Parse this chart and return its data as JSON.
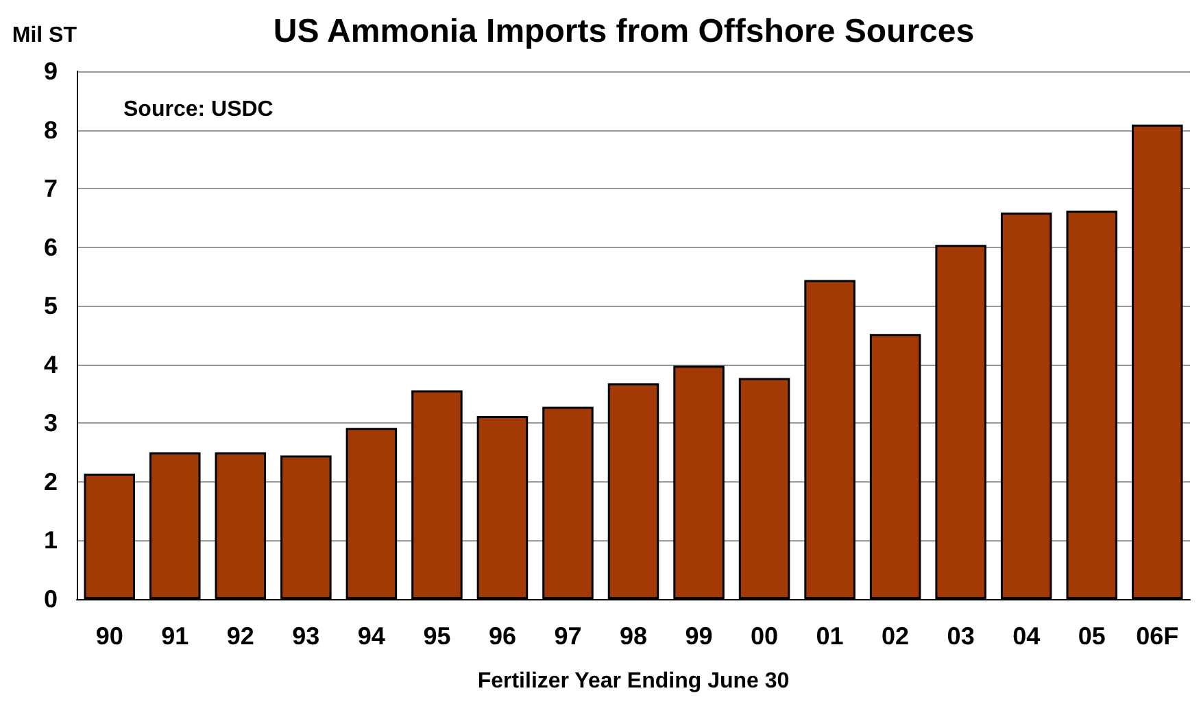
{
  "chart_data": {
    "type": "bar",
    "title": "US Ammonia Imports from Offshore Sources",
    "ylabel": "Mil ST",
    "xlabel": "Fertilizer Year Ending June 30",
    "annotations": [
      "Source: USDC"
    ],
    "categories": [
      "90",
      "91",
      "92",
      "93",
      "94",
      "95",
      "96",
      "97",
      "98",
      "99",
      "00",
      "01",
      "02",
      "03",
      "04",
      "05",
      "06F"
    ],
    "values": [
      2.14,
      2.5,
      2.5,
      2.45,
      2.92,
      3.56,
      3.12,
      3.28,
      3.68,
      3.98,
      3.77,
      5.44,
      4.52,
      6.04,
      6.59,
      6.62,
      8.09
    ],
    "color": "#a33a06",
    "ylim": [
      0,
      9
    ],
    "yticks": [
      0,
      1,
      2,
      3,
      4,
      5,
      6,
      7,
      8,
      9
    ],
    "grid": "y"
  }
}
